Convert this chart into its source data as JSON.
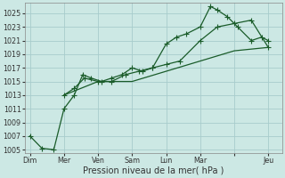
{
  "xlabel": "Pression niveau de la mer( hPa )",
  "background_color": "#cce8e4",
  "grid_color": "#a8cccc",
  "line_color": "#1a5c2a",
  "ylim": [
    1004.5,
    1026.5
  ],
  "ytick_values": [
    1005,
    1007,
    1009,
    1011,
    1013,
    1015,
    1017,
    1019,
    1021,
    1023,
    1025
  ],
  "x_labels": [
    "Dim",
    "Mer",
    "Ven",
    "Sam",
    "Lun",
    "Mar",
    "",
    "Jeu"
  ],
  "x_positions": [
    0,
    1,
    2,
    3,
    4,
    5,
    6,
    7
  ],
  "xlim": [
    -0.15,
    7.4
  ],
  "line1_x": [
    0,
    0.35,
    0.7,
    1.0,
    1.3,
    1.55,
    1.8,
    2.1,
    2.4,
    2.7,
    3.0,
    3.3,
    3.6,
    4.0,
    4.3,
    4.6,
    5.0,
    5.3,
    5.5,
    5.8,
    6.1,
    6.5,
    6.8,
    7.0
  ],
  "line1_y": [
    1007,
    1005.2,
    1005,
    1011,
    1013,
    1016,
    1015.5,
    1015,
    1015.5,
    1016,
    1017,
    1016.5,
    1017,
    1020.5,
    1021.5,
    1022,
    1023,
    1026,
    1025.5,
    1024.5,
    1023,
    1021,
    1021.5,
    1021
  ],
  "line2_x": [
    1.0,
    1.3,
    1.6,
    2.0,
    2.4,
    2.8,
    3.2,
    3.6,
    4.0,
    4.4,
    5.0,
    5.5,
    6.0,
    6.5,
    7.0
  ],
  "line2_y": [
    1013,
    1014,
    1015.5,
    1015,
    1015,
    1016,
    1016.5,
    1017,
    1017.5,
    1018,
    1021,
    1023,
    1023.5,
    1024,
    1020
  ],
  "line3_x": [
    1.0,
    2.0,
    3.0,
    4.0,
    5.0,
    6.0,
    7.0
  ],
  "line3_y": [
    1013,
    1015,
    1015,
    1016.5,
    1018,
    1019.5,
    1020
  ],
  "marker_size": 2.5,
  "line_width": 0.9,
  "tick_fontsize": 5.8,
  "xlabel_fontsize": 7.0
}
